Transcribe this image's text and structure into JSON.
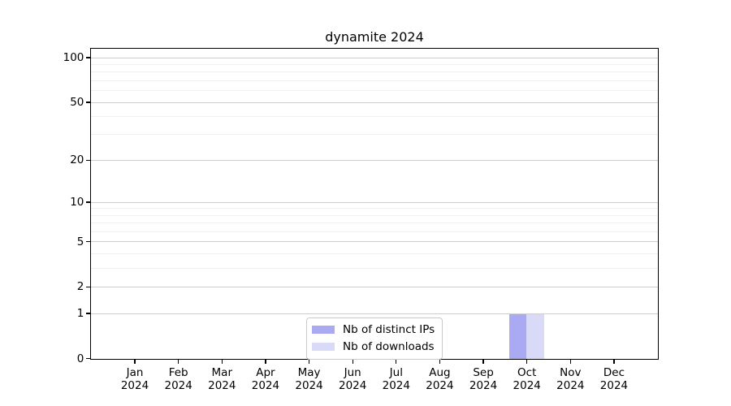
{
  "chart_data": {
    "type": "bar",
    "title": "dynamite 2024",
    "x_months": [
      "Jan",
      "Feb",
      "Mar",
      "Apr",
      "May",
      "Jun",
      "Jul",
      "Aug",
      "Sep",
      "Oct",
      "Nov",
      "Dec"
    ],
    "x_year": "2024",
    "series": [
      {
        "name": "Nb of distinct IPs",
        "color": "#aaaaf2",
        "values": [
          0,
          0,
          0,
          0,
          0,
          0,
          0,
          0,
          0,
          1,
          0,
          0
        ]
      },
      {
        "name": "Nb of downloads",
        "color": "#d9d9f8",
        "values": [
          0,
          0,
          0,
          0,
          0,
          0,
          0,
          0,
          0,
          1,
          0,
          0
        ]
      }
    ],
    "yscale": "log10(value+1)",
    "ylim_top_log1p": 2.062,
    "y_tick_values": [
      0,
      1,
      2,
      5,
      10,
      20,
      50,
      100
    ],
    "y_tick_labels": [
      "0",
      "1",
      "2",
      "5",
      "10",
      "20",
      "50",
      "100"
    ],
    "y_minor_gridline_values": [
      3,
      4,
      6,
      7,
      8,
      9,
      30,
      40,
      60,
      70,
      80,
      90
    ],
    "grid": "horizontal",
    "legend_position": "lower center",
    "colors": {
      "background": "#ffffff",
      "axis": "#000000",
      "text": "#000000",
      "major_grid": "#cdcdcd",
      "minor_grid": "#f1f1f1",
      "legend_border": "#c9c9c9"
    }
  }
}
